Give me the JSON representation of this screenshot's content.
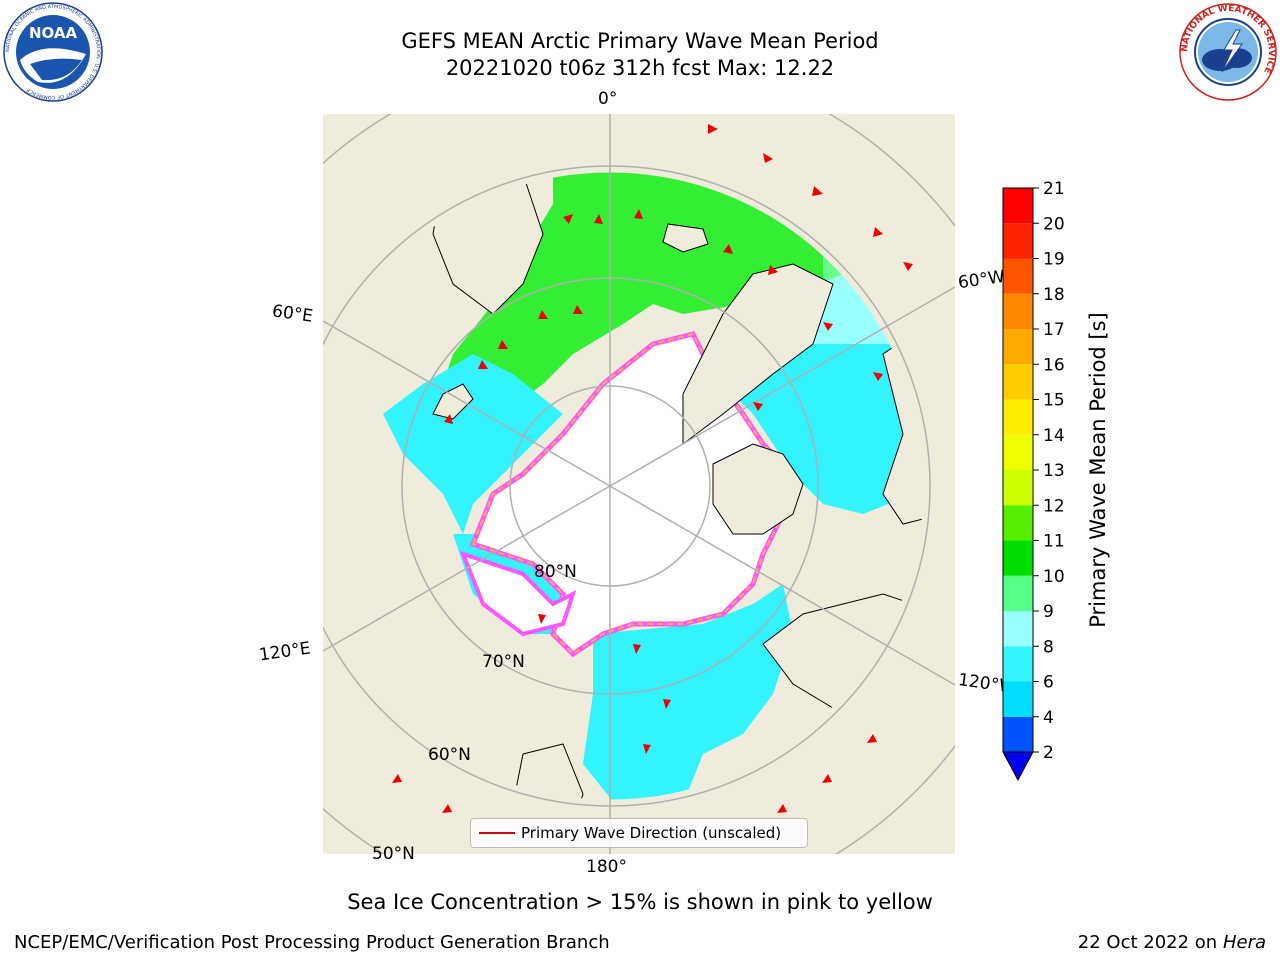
{
  "title": {
    "line1": "GEFS MEAN Arctic Primary Wave Mean Period",
    "line2": "20221020 t06z 312h fcst   Max: 12.22"
  },
  "map": {
    "projection": "north-polar-stereographic",
    "lon_labels": [
      "0°",
      "60°W",
      "120°W",
      "180°",
      "120°E",
      "60°E"
    ],
    "lat_labels": [
      "80°N",
      "70°N",
      "60°N",
      "50°N"
    ],
    "colors": {
      "land": "#efecdb",
      "ice": "#ffffff",
      "grid": "#b0b0b0",
      "coast": "#000000",
      "ice_edge_pink": "#ff55ff",
      "ice_edge_orange": "#ffb050",
      "arrow": "#ee0000"
    }
  },
  "legend": {
    "label": "Primary Wave Direction (unscaled)"
  },
  "colorbar": {
    "title": "Primary Wave Mean Period [s]",
    "ticks": [
      "2",
      "4",
      "6",
      "8",
      "9",
      "10",
      "11",
      "12",
      "13",
      "14",
      "15",
      "16",
      "17",
      "18",
      "19",
      "20",
      "21"
    ],
    "colors": [
      "#0055ff",
      "#00ddff",
      "#33f3ff",
      "#99ffff",
      "#55ff88",
      "#00dd00",
      "#55ee00",
      "#ccff00",
      "#eeff00",
      "#ffee00",
      "#ffcc00",
      "#ffaa00",
      "#ff8800",
      "#ff5500",
      "#ff2200",
      "#ff0000"
    ],
    "extend_color": "#0000ee"
  },
  "note": "Sea Ice Concentration > 15% is shown in pink to yellow",
  "footer": {
    "left": "NCEP/EMC/Verification Post Processing Product Generation Branch",
    "date": "22 Oct 2022 on",
    "machine": "Hera"
  },
  "logos": {
    "left_text": "NOAA",
    "left_ring_text": "NATIONAL OCEANIC AND ATMOSPHERIC ADMINISTRATION · U.S. DEPARTMENT OF COMMERCE",
    "right_ring_text": "NATIONAL WEATHER SERVICE"
  }
}
